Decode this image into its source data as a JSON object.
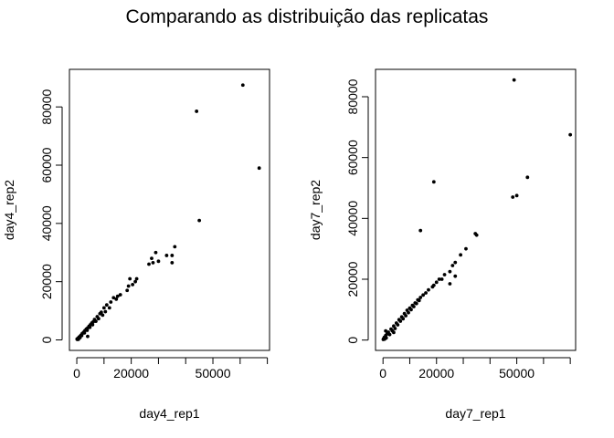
{
  "title": "Comparando as distribuição das replicatas",
  "chart_data": [
    {
      "type": "scatter",
      "xlabel": "day4_rep1",
      "ylabel": "day4_rep2",
      "xlim": [
        -2700,
        70800
      ],
      "ylim": [
        -3600,
        92900
      ],
      "x_ticks": [
        0,
        10000,
        20000,
        30000,
        40000,
        50000,
        60000,
        70000
      ],
      "x_tick_labels": [
        "0",
        "",
        "20000",
        "",
        "",
        "50000",
        "",
        ""
      ],
      "y_ticks": [
        0,
        20000,
        40000,
        60000,
        80000
      ],
      "y_tick_labels": [
        "0",
        "20000",
        "40000",
        "60000",
        "80000"
      ],
      "grid": false,
      "legend": "none",
      "points": [
        [
          67000,
          59000
        ],
        [
          61000,
          87500
        ],
        [
          44000,
          78500
        ],
        [
          45000,
          41000
        ],
        [
          36000,
          32000
        ],
        [
          35000,
          29000
        ],
        [
          35000,
          26500
        ],
        [
          33000,
          29000
        ],
        [
          30000,
          27000
        ],
        [
          29000,
          30000
        ],
        [
          28000,
          26500
        ],
        [
          27500,
          28000
        ],
        [
          26500,
          26000
        ],
        [
          22000,
          21000
        ],
        [
          20500,
          19000
        ],
        [
          21500,
          20000
        ],
        [
          19500,
          21000
        ],
        [
          19000,
          18500
        ],
        [
          18500,
          17000
        ],
        [
          16000,
          15500
        ],
        [
          14500,
          14000
        ],
        [
          13500,
          14500
        ],
        [
          15000,
          15000
        ],
        [
          12500,
          13000
        ],
        [
          11000,
          12000
        ],
        [
          10000,
          11000
        ],
        [
          9000,
          9500
        ],
        [
          8500,
          9000
        ],
        [
          7500,
          8000
        ],
        [
          6500,
          7000
        ],
        [
          6000,
          6200
        ],
        [
          5500,
          5800
        ],
        [
          5000,
          5200
        ],
        [
          4500,
          4700
        ],
        [
          4000,
          4100
        ],
        [
          3500,
          3700
        ],
        [
          3000,
          3200
        ],
        [
          2500,
          2600
        ],
        [
          2000,
          2200
        ],
        [
          1500,
          1600
        ],
        [
          1000,
          1100
        ],
        [
          800,
          900
        ],
        [
          500,
          600
        ],
        [
          300,
          400
        ],
        [
          200,
          150
        ],
        [
          100,
          300
        ],
        [
          600,
          200
        ],
        [
          1200,
          800
        ],
        [
          1800,
          1500
        ],
        [
          2800,
          2400
        ],
        [
          3800,
          3300
        ],
        [
          4800,
          4300
        ],
        [
          5800,
          5200
        ],
        [
          7000,
          6400
        ],
        [
          8000,
          7300
        ],
        [
          9500,
          8500
        ],
        [
          10500,
          9700
        ],
        [
          12000,
          11000
        ],
        [
          4000,
          1200
        ]
      ]
    },
    {
      "type": "scatter",
      "xlabel": "day7_rep1",
      "ylabel": "day7_rep2",
      "xlim": [
        -2800,
        72000
      ],
      "ylim": [
        -3400,
        89000
      ],
      "x_ticks": [
        0,
        10000,
        20000,
        30000,
        40000,
        50000,
        60000,
        70000
      ],
      "x_tick_labels": [
        "0",
        "",
        "20000",
        "",
        "",
        "50000",
        "",
        ""
      ],
      "y_ticks": [
        0,
        20000,
        40000,
        60000,
        80000
      ],
      "y_tick_labels": [
        "0",
        "20000",
        "40000",
        "60000",
        "80000"
      ],
      "grid": false,
      "legend": "none",
      "points": [
        [
          70000,
          67500
        ],
        [
          49000,
          85500
        ],
        [
          54000,
          53500
        ],
        [
          50000,
          47500
        ],
        [
          48500,
          47000
        ],
        [
          19000,
          52000
        ],
        [
          14000,
          36000
        ],
        [
          35000,
          34500
        ],
        [
          34500,
          35000
        ],
        [
          31000,
          30000
        ],
        [
          29000,
          28000
        ],
        [
          27000,
          25500
        ],
        [
          26000,
          24500
        ],
        [
          25000,
          22500
        ],
        [
          27000,
          21000
        ],
        [
          25000,
          18500
        ],
        [
          23000,
          21500
        ],
        [
          22000,
          20000
        ],
        [
          21000,
          20000
        ],
        [
          20000,
          19000
        ],
        [
          19000,
          18000
        ],
        [
          18500,
          17500
        ],
        [
          17000,
          16500
        ],
        [
          16000,
          15500
        ],
        [
          15000,
          14800
        ],
        [
          14000,
          14000
        ],
        [
          13000,
          13200
        ],
        [
          12000,
          12200
        ],
        [
          11000,
          11400
        ],
        [
          10000,
          10500
        ],
        [
          9000,
          9800
        ],
        [
          8000,
          8700
        ],
        [
          7000,
          7600
        ],
        [
          6000,
          6700
        ],
        [
          5000,
          5600
        ],
        [
          4000,
          4600
        ],
        [
          3000,
          3600
        ],
        [
          2000,
          2600
        ],
        [
          1500,
          2000
        ],
        [
          1000,
          1500
        ],
        [
          500,
          900
        ],
        [
          200,
          400
        ],
        [
          100,
          200
        ],
        [
          600,
          300
        ],
        [
          1200,
          700
        ],
        [
          2500,
          1800
        ],
        [
          3500,
          3000
        ],
        [
          4500,
          3800
        ],
        [
          5500,
          5000
        ],
        [
          6500,
          6200
        ],
        [
          7500,
          7000
        ],
        [
          8500,
          8000
        ],
        [
          9500,
          9000
        ],
        [
          10500,
          10000
        ],
        [
          11500,
          11000
        ],
        [
          12500,
          12000
        ],
        [
          13500,
          13000
        ],
        [
          1000,
          3000
        ],
        [
          4000,
          2500
        ]
      ]
    }
  ]
}
